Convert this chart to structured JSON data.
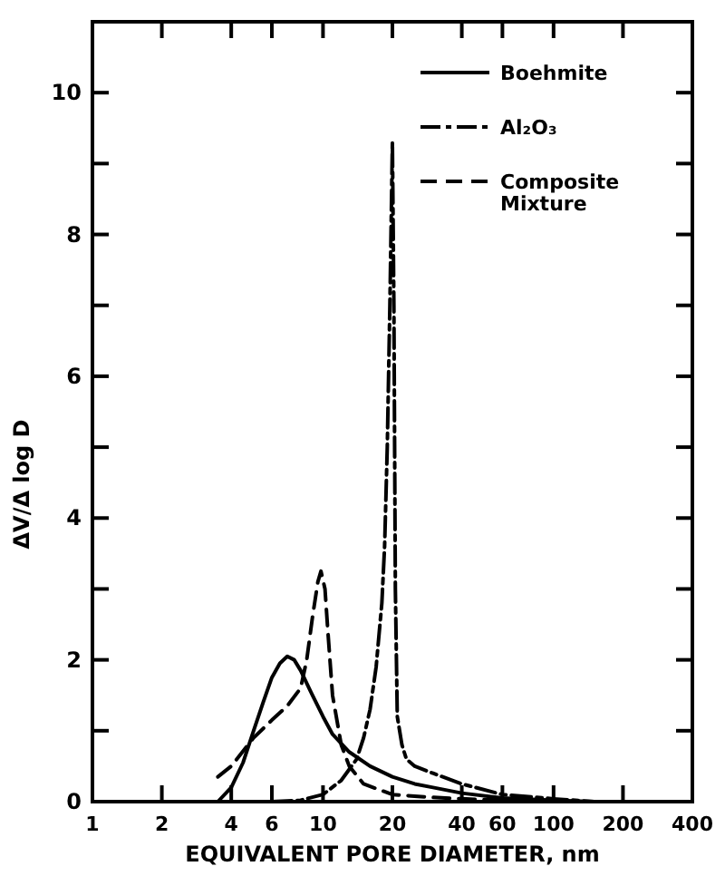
{
  "chart_data": {
    "type": "line",
    "xlabel": "EQUIVALENT PORE DIAMETER, nm",
    "ylabel": "ΔV/Δ log D",
    "log": "x",
    "xlim": [
      1,
      400
    ],
    "xticks": [
      1,
      2,
      4,
      6,
      10,
      20,
      40,
      60,
      100,
      200,
      400
    ],
    "ylim": [
      0,
      11
    ],
    "yticks": [
      0,
      {
        "value": 1,
        "label": null
      },
      2,
      {
        "value": 3,
        "label": null
      },
      4,
      {
        "value": 5,
        "label": null
      },
      6,
      {
        "value": 7,
        "label": null
      },
      8,
      {
        "value": 9,
        "label": null
      },
      10
    ],
    "grid": false,
    "legend": "top right",
    "marker": "none",
    "series": [
      {
        "name": "Boehmite",
        "color": "#000000",
        "line_style": "solid",
        "x": [
          3.5,
          4,
          4.5,
          5,
          5.5,
          6,
          6.5,
          7,
          7.5,
          8,
          9,
          10,
          11,
          13,
          16,
          20,
          25,
          30,
          40,
          60,
          100,
          150
        ],
        "values": [
          0,
          0.2,
          0.55,
          1.0,
          1.4,
          1.75,
          1.95,
          2.05,
          2.0,
          1.85,
          1.5,
          1.2,
          0.95,
          0.7,
          0.5,
          0.35,
          0.25,
          0.2,
          0.12,
          0.05,
          0.02,
          0
        ]
      },
      {
        "name": "Al₂O₃",
        "color": "#000000",
        "line_style": "dashdot",
        "x": [
          6,
          8,
          10,
          12,
          14,
          15,
          16,
          17,
          18,
          18.5,
          19,
          19.5,
          20,
          20.3,
          20.6,
          21,
          22,
          23,
          25,
          30,
          40,
          60,
          100,
          150
        ],
        "values": [
          0,
          0.02,
          0.1,
          0.3,
          0.6,
          0.9,
          1.3,
          1.9,
          2.8,
          3.6,
          5.0,
          7.0,
          9.3,
          7.0,
          3.0,
          1.2,
          0.8,
          0.6,
          0.5,
          0.4,
          0.25,
          0.1,
          0.04,
          0
        ]
      },
      {
        "name": "Composite Mixture",
        "color": "#000000",
        "line_style": "dashed",
        "x": [
          3.5,
          4,
          5,
          6,
          7,
          8,
          8.5,
          9,
          9.5,
          9.8,
          10.2,
          10.5,
          11,
          12,
          13,
          15,
          20,
          30,
          40,
          60,
          100
        ],
        "values": [
          0.35,
          0.5,
          0.9,
          1.15,
          1.35,
          1.6,
          2.0,
          2.6,
          3.1,
          3.25,
          3.0,
          2.4,
          1.5,
          0.8,
          0.5,
          0.25,
          0.1,
          0.06,
          0.04,
          0.02,
          0
        ]
      }
    ]
  }
}
